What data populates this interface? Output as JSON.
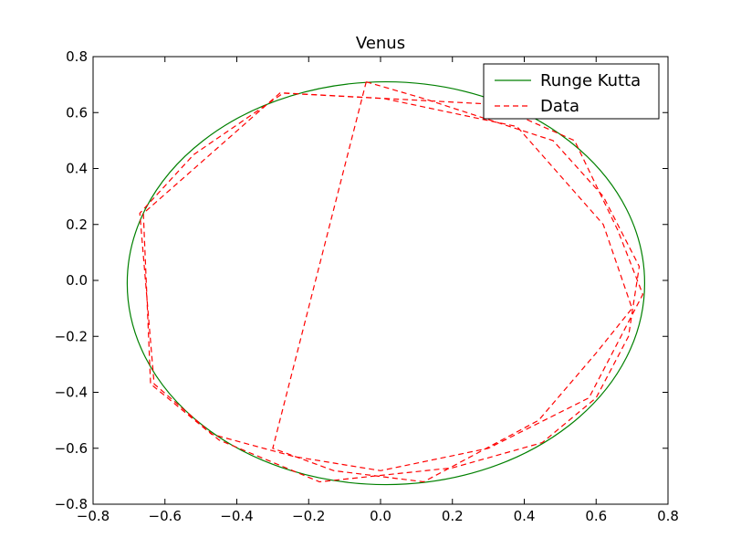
{
  "chart_data": {
    "type": "line",
    "title": "Venus",
    "xlabel": "",
    "ylabel": "",
    "xlim": [
      -0.8,
      0.8
    ],
    "ylim": [
      -0.8,
      0.8
    ],
    "grid": false,
    "legend_position": "top-right",
    "x_ticks": [
      "−0.8",
      "−0.6",
      "−0.4",
      "−0.2",
      "0.0",
      "0.2",
      "0.4",
      "0.6",
      "0.8"
    ],
    "y_ticks": [
      "−0.8",
      "−0.6",
      "−0.4",
      "−0.2",
      "0.0",
      "0.2",
      "0.4",
      "0.6",
      "0.8"
    ],
    "series": [
      {
        "name": "Runge Kutta",
        "color": "#008000",
        "style": "solid",
        "orbit": {
          "center_x": 0.015,
          "center_y": -0.01,
          "semi_axis_x": 0.72,
          "semi_axis_y": 0.72
        }
      },
      {
        "name": "Data",
        "color": "#ff0000",
        "style": "dashed",
        "x": [
          -0.04,
          0.12,
          0.48,
          0.62,
          0.72,
          0.69,
          0.6,
          0.45,
          0.2,
          -0.17,
          -0.45,
          -0.63,
          -0.67,
          -0.52,
          -0.27,
          0.31,
          0.54,
          0.66,
          0.73,
          0.58,
          0.3,
          0.0,
          -0.24,
          -0.47,
          -0.64,
          -0.66,
          -0.28,
          0.01,
          0.38,
          0.62,
          0.7,
          0.6,
          0.44,
          0.12,
          -0.13,
          -0.3,
          -0.04
        ],
        "y": [
          0.71,
          0.65,
          0.5,
          0.3,
          0.05,
          -0.2,
          -0.42,
          -0.58,
          -0.67,
          -0.72,
          -0.57,
          -0.37,
          0.24,
          0.45,
          0.67,
          0.63,
          0.5,
          0.18,
          -0.05,
          -0.42,
          -0.6,
          -0.68,
          -0.63,
          -0.55,
          -0.37,
          0.24,
          0.67,
          0.65,
          0.55,
          0.2,
          -0.1,
          -0.26,
          -0.5,
          -0.72,
          -0.68,
          -0.6,
          0.71
        ]
      }
    ]
  }
}
